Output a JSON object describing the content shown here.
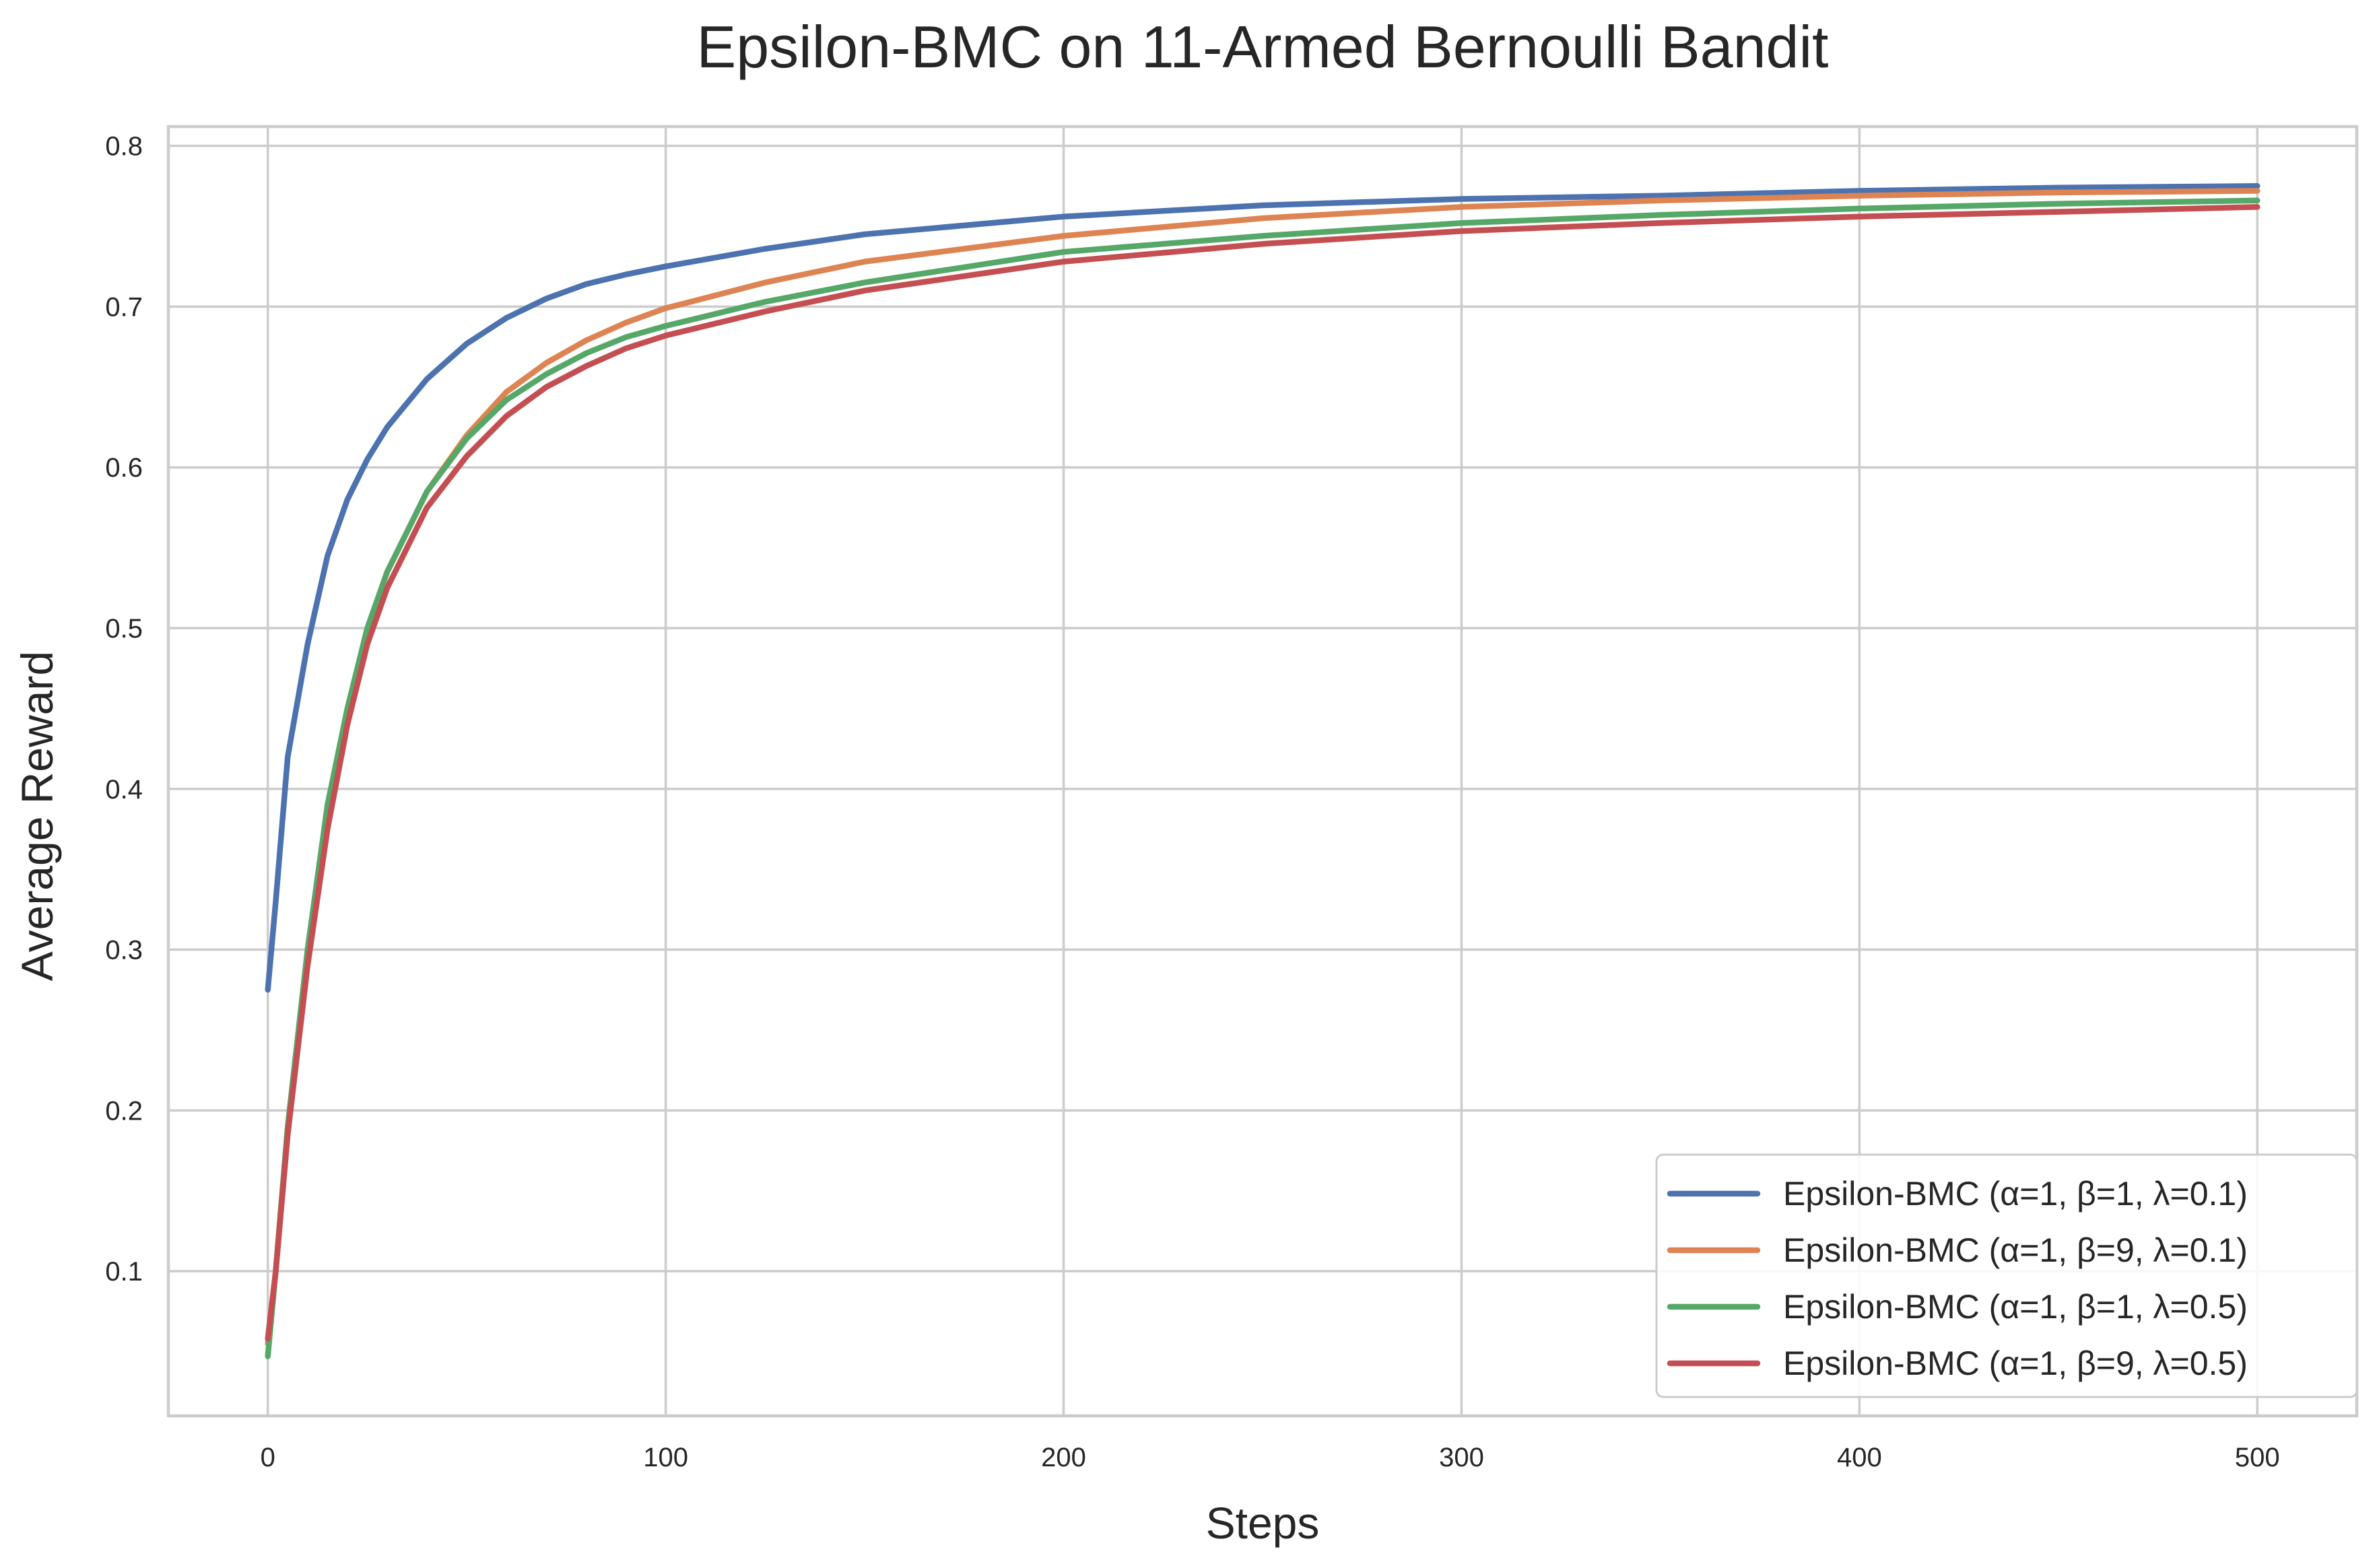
{
  "chart_data": {
    "type": "line",
    "title": "Epsilon-BMC on 11-Armed Bernoulli Bandit",
    "xlabel": "Steps",
    "ylabel": "Average Reward",
    "xlim": [
      -25,
      525
    ],
    "ylim": [
      0.01,
      0.812
    ],
    "xticks": [
      0,
      100,
      200,
      300,
      400,
      500
    ],
    "xtick_labels": [
      "0",
      "100",
      "200",
      "300",
      "400",
      "500"
    ],
    "yticks": [
      0.1,
      0.2,
      0.3,
      0.4,
      0.5,
      0.6,
      0.7,
      0.8
    ],
    "ytick_labels": [
      "0.1",
      "0.2",
      "0.3",
      "0.4",
      "0.5",
      "0.6",
      "0.7",
      "0.8"
    ],
    "grid": true,
    "legend_position": "bottom-right",
    "x": [
      0,
      2,
      5,
      10,
      15,
      20,
      25,
      30,
      40,
      50,
      60,
      70,
      80,
      90,
      100,
      125,
      150,
      200,
      250,
      300,
      350,
      400,
      450,
      500
    ],
    "series": [
      {
        "name": "Epsilon-BMC (α=1, β=1, λ=0.1)",
        "color": "#4c72b0",
        "values": [
          0.275,
          0.33,
          0.42,
          0.49,
          0.545,
          0.58,
          0.605,
          0.625,
          0.655,
          0.677,
          0.693,
          0.705,
          0.714,
          0.72,
          0.725,
          0.736,
          0.745,
          0.756,
          0.763,
          0.767,
          0.769,
          0.772,
          0.774,
          0.775
        ]
      },
      {
        "name": "Epsilon-BMC (α=1, β=9, λ=0.1)",
        "color": "#dd8452",
        "values": [
          0.055,
          0.1,
          0.19,
          0.3,
          0.39,
          0.45,
          0.5,
          0.535,
          0.585,
          0.62,
          0.647,
          0.665,
          0.679,
          0.69,
          0.699,
          0.715,
          0.728,
          0.744,
          0.755,
          0.762,
          0.766,
          0.769,
          0.771,
          0.772
        ]
      },
      {
        "name": "Epsilon-BMC (α=1, β=1, λ=0.5)",
        "color": "#55a868",
        "values": [
          0.047,
          0.1,
          0.19,
          0.3,
          0.39,
          0.45,
          0.5,
          0.535,
          0.585,
          0.618,
          0.642,
          0.658,
          0.671,
          0.681,
          0.688,
          0.703,
          0.715,
          0.734,
          0.744,
          0.752,
          0.757,
          0.761,
          0.764,
          0.766
        ]
      },
      {
        "name": "Epsilon-BMC (α=1, β=9, λ=0.5)",
        "color": "#c44e52",
        "values": [
          0.058,
          0.1,
          0.185,
          0.29,
          0.375,
          0.44,
          0.49,
          0.525,
          0.575,
          0.607,
          0.632,
          0.65,
          0.663,
          0.674,
          0.682,
          0.697,
          0.71,
          0.728,
          0.739,
          0.747,
          0.752,
          0.756,
          0.759,
          0.762
        ]
      }
    ]
  }
}
